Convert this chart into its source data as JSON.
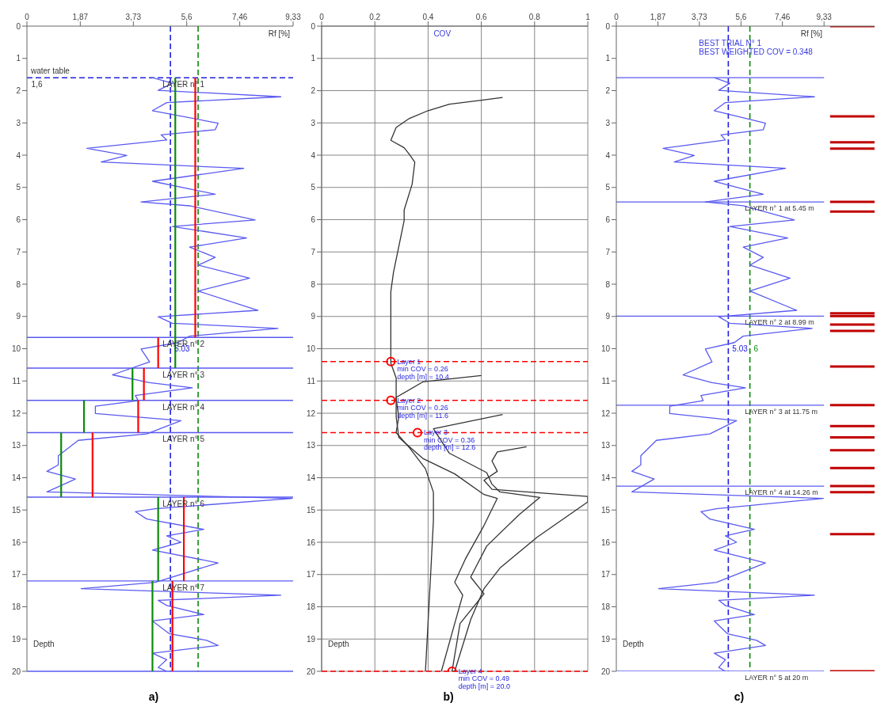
{
  "chart_data": [
    {
      "type": "line",
      "title": "a)",
      "xlabel": "Rf [%]",
      "ylabel": "Depth",
      "xlim": [
        0,
        9.33
      ],
      "xticks": [
        0,
        {
          "value": 1.87,
          "label": "1,87"
        },
        {
          "value": 3.73,
          "label": "3,73"
        },
        {
          "value": 5.6,
          "label": "5,6"
        },
        {
          "value": 7.46,
          "label": "7,46"
        },
        {
          "value": 9.33,
          "label": "9,33"
        }
      ],
      "ylim": [
        20,
        0
      ],
      "yticks": [
        0,
        1,
        2,
        3,
        4,
        5,
        6,
        7,
        8,
        9,
        10,
        11,
        12,
        13,
        14,
        15,
        16,
        17,
        18,
        19,
        20
      ],
      "grid": false,
      "series": [
        {
          "color": "#5a5af0",
          "x": [
            4.4,
            5.1,
            4.6,
            8.9,
            4.9,
            4.4,
            6.7,
            6.6,
            4.7,
            4.9,
            2.1,
            3.5,
            2.6,
            7.6,
            4.4,
            6.6,
            4.0,
            5.7,
            8.0,
            5.1,
            7.7,
            5.7,
            6.6,
            6.0,
            7.8,
            6.0,
            8.1,
            4.6,
            5.1,
            8.8,
            5.7,
            5.3,
            4.0,
            4.3,
            3.0,
            4.3,
            5.8,
            3.8,
            3.9,
            2.4,
            2.4,
            5.4,
            4.2,
            1.8,
            1.1,
            1.1,
            0.7,
            1.7,
            0.7,
            9.3,
            4.5,
            3.8,
            4.2,
            6.2,
            4.9,
            5.4,
            4.4,
            6.7,
            4.5,
            1.9,
            8.9,
            4.6,
            4.9,
            6.2,
            4.4,
            5.0,
            6.3,
            6.7,
            4.4,
            4.9,
            4.6,
            4.9
          ],
          "values": [
            1.6,
            1.77,
            1.99,
            2.19,
            2.37,
            2.62,
            3.01,
            3.21,
            3.37,
            3.53,
            3.79,
            4.01,
            4.21,
            4.41,
            4.81,
            5.21,
            5.45,
            5.57,
            6.01,
            6.21,
            6.57,
            6.85,
            7.17,
            7.41,
            7.81,
            8.21,
            8.81,
            9.01,
            9.21,
            9.37,
            9.61,
            9.81,
            10.01,
            10.41,
            10.81,
            11.05,
            11.21,
            11.45,
            11.61,
            11.78,
            12.01,
            12.23,
            12.64,
            12.84,
            13.32,
            13.6,
            13.8,
            14.04,
            14.44,
            14.64,
            14.96,
            15.05,
            15.28,
            15.6,
            15.8,
            16.0,
            16.24,
            16.64,
            17.24,
            17.44,
            17.64,
            17.8,
            17.96,
            18.24,
            18.44,
            18.84,
            19.04,
            19.2,
            19.44,
            19.64,
            19.88,
            20.0
          ]
        },
        {
          "color": "#ff0000",
          "x": [
            5.9,
            5.9
          ],
          "values": [
            1.6,
            9.65
          ]
        },
        {
          "color": "#ff0000",
          "x": [
            4.6,
            4.6
          ],
          "values": [
            9.65,
            10.6
          ]
        },
        {
          "color": "#ff0000",
          "x": [
            4.1,
            4.1
          ],
          "values": [
            10.6,
            11.6
          ]
        },
        {
          "color": "#ff0000",
          "x": [
            3.9,
            3.9
          ],
          "values": [
            11.6,
            12.6
          ]
        },
        {
          "color": "#ff0000",
          "x": [
            2.3,
            2.3
          ],
          "values": [
            12.6,
            14.6
          ]
        },
        {
          "color": "#ff0000",
          "x": [
            5.5,
            5.5
          ],
          "values": [
            14.6,
            17.2
          ]
        },
        {
          "color": "#ff0000",
          "x": [
            5.1,
            5.1
          ],
          "values": [
            17.2,
            20
          ]
        },
        {
          "color": "#0a8a0a",
          "x": [
            5.2,
            5.2
          ],
          "values": [
            1.6,
            10.6
          ]
        },
        {
          "color": "#0a8a0a",
          "x": [
            3.7,
            3.7
          ],
          "values": [
            10.6,
            11.6
          ]
        },
        {
          "color": "#0a8a0a",
          "x": [
            2.0,
            2.0
          ],
          "values": [
            11.6,
            12.6
          ]
        },
        {
          "color": "#0a8a0a",
          "x": [
            1.2,
            1.2
          ],
          "values": [
            12.6,
            14.6
          ]
        },
        {
          "color": "#0a8a0a",
          "x": [
            4.6,
            4.6
          ],
          "values": [
            14.6,
            17.2
          ]
        },
        {
          "color": "#0a8a0a",
          "x": [
            4.4,
            4.4
          ],
          "values": [
            17.2,
            20
          ]
        }
      ],
      "ref_lines": [
        {
          "axis": "x",
          "value": 5.03,
          "label": "5.03",
          "color": "#2020e0",
          "line_style": "dashed"
        },
        {
          "axis": "x",
          "value": 6,
          "color": "#0a8a0a",
          "line_style": "dashed"
        },
        {
          "axis": "y",
          "value": 1.6,
          "label": "water table",
          "color": "#2020e0",
          "line_style": "dashed"
        },
        {
          "axis": "y",
          "value": 9.65,
          "color": "#5a5af0"
        },
        {
          "axis": "y",
          "value": 10.6,
          "color": "#5a5af0"
        },
        {
          "axis": "y",
          "value": 11.6,
          "color": "#5a5af0"
        },
        {
          "axis": "y",
          "value": 12.6,
          "color": "#5a5af0"
        },
        {
          "axis": "y",
          "value": 14.6,
          "color": "#5a5af0"
        },
        {
          "axis": "y",
          "value": 17.2,
          "color": "#5a5af0"
        },
        {
          "axis": "y",
          "value": 20,
          "color": "#5a5af0"
        }
      ],
      "annotations": [
        {
          "text": "1,6",
          "x": 0.1,
          "y": 1.6
        },
        {
          "text": "LAYER n° 1",
          "x": 4.7,
          "y": 1.6
        },
        {
          "text": "LAYER n° 2",
          "x": 4.7,
          "y": 9.65
        },
        {
          "text": "LAYER n° 3",
          "x": 4.7,
          "y": 10.6
        },
        {
          "text": "LAYER n° 4",
          "x": 4.7,
          "y": 11.6
        },
        {
          "text": "LAYER n° 5",
          "x": 4.7,
          "y": 12.6
        },
        {
          "text": "LAYER n° 6",
          "x": 4.7,
          "y": 14.6
        },
        {
          "text": "LAYER n° 7",
          "x": 4.7,
          "y": 17.2
        }
      ]
    },
    {
      "type": "line",
      "title": "b)",
      "xlabel": "COV",
      "ylabel": "Depth",
      "xlim": [
        0,
        1
      ],
      "xticks": [
        0,
        0.2,
        0.4,
        0.6,
        0.8,
        1
      ],
      "ylim": [
        20,
        0
      ],
      "yticks": [
        0,
        1,
        2,
        3,
        4,
        5,
        6,
        7,
        8,
        9,
        10,
        11,
        12,
        13,
        14,
        15,
        16,
        17,
        18,
        19,
        20
      ],
      "grid": true,
      "series": [
        {
          "color": "#333333",
          "x": [
            0.68,
            0.6,
            0.48,
            0.4,
            0.33,
            0.28,
            0.26,
            0.31,
            0.33,
            0.35,
            0.34,
            0.31,
            0.31,
            0.29,
            0.27,
            0.26,
            0.26,
            0.28,
            0.28,
            0.29,
            0.28,
            0.33,
            0.39,
            0.42,
            0.42,
            0.41,
            0.39
          ],
          "values": [
            2.21,
            2.3,
            2.42,
            2.62,
            2.86,
            3.14,
            3.54,
            3.77,
            3.98,
            4.22,
            4.9,
            5.7,
            6.03,
            6.83,
            7.63,
            8.23,
            10.45,
            10.91,
            11.55,
            12.11,
            12.6,
            13.07,
            13.72,
            14.45,
            15.32,
            16.93,
            20.0
          ]
        },
        {
          "color": "#333333",
          "x": [
            0.6,
            0.38,
            0.28,
            0.28,
            0.29,
            0.38,
            0.5,
            0.61,
            0.66,
            0.61,
            0.54,
            0.5,
            0.53,
            0.5,
            0.45
          ],
          "values": [
            10.83,
            11.03,
            11.51,
            12.11,
            12.75,
            13.4,
            13.88,
            14.52,
            14.64,
            15.48,
            16.52,
            17.24,
            17.64,
            18.52,
            20.0
          ]
        },
        {
          "color": "#333333",
          "x": [
            0.68,
            0.42,
            0.48,
            0.62,
            0.64,
            0.67,
            0.82,
            0.74,
            0.62,
            0.56,
            0.61,
            0.52,
            0.49
          ],
          "values": [
            12.04,
            12.48,
            13.24,
            13.84,
            14.2,
            14.44,
            14.61,
            15.16,
            16.12,
            17.08,
            17.6,
            18.52,
            20.0
          ]
        },
        {
          "color": "#333333",
          "x": [
            0.77,
            0.66,
            0.64,
            0.66,
            0.61,
            0.64,
            1.0,
            1.0,
            0.81,
            0.67,
            0.61,
            0.56,
            0.5
          ],
          "values": [
            13.04,
            13.2,
            13.48,
            13.8,
            14.08,
            14.36,
            14.58,
            14.75,
            15.84,
            16.8,
            17.44,
            18.4,
            20.0
          ]
        },
        {
          "type": "scatter",
          "marker": "circle",
          "color": "#ff0000",
          "x": [
            0.26,
            0.26,
            0.36,
            0.49
          ],
          "values": [
            10.4,
            11.6,
            12.6,
            20.0
          ]
        }
      ],
      "ref_lines": [
        {
          "axis": "y",
          "value": 10.4,
          "color": "#ff0000",
          "line_style": "dashed"
        },
        {
          "axis": "y",
          "value": 11.6,
          "color": "#ff0000",
          "line_style": "dashed"
        },
        {
          "axis": "y",
          "value": 12.6,
          "color": "#ff0000",
          "line_style": "dashed"
        },
        {
          "axis": "y",
          "value": 20,
          "color": "#ff0000",
          "line_style": "dashed"
        }
      ],
      "annotations": [
        {
          "text": "Layer 1\nmin COV = 0.26\ndepth [m] = 10.4",
          "x": 0.26,
          "y": 10.4
        },
        {
          "text": "Layer 2\nmin COV = 0.26\ndepth [m] = 11.6",
          "x": 0.26,
          "y": 11.6
        },
        {
          "text": "Layer 3\nmin COV = 0.36\ndepth [m] = 12.6",
          "x": 0.36,
          "y": 12.6
        },
        {
          "text": "Layer 4\nmin COV = 0.49\ndepth [m] = 20.0",
          "x": 0.49,
          "y": 20.0
        }
      ]
    },
    {
      "type": "line",
      "title": "c)",
      "xlabel": "Rf [%]",
      "ylabel": "Depth",
      "xlim": [
        0,
        11.6
      ],
      "xticks": [
        0,
        {
          "value": 1.87,
          "label": "1,87"
        },
        {
          "value": 3.73,
          "label": "3,73"
        },
        {
          "value": 5.6,
          "label": "5,6"
        },
        {
          "value": 7.46,
          "label": "7,46"
        },
        {
          "value": 9.33,
          "label": "9,33"
        }
      ],
      "ylim": [
        20,
        0
      ],
      "yticks": [
        0,
        1,
        2,
        3,
        4,
        5,
        6,
        7,
        8,
        9,
        10,
        11,
        12,
        13,
        14,
        15,
        16,
        17,
        18,
        19,
        20
      ],
      "grid": false,
      "series": [
        {
          "color": "#5a5af0",
          "x": [
            4.4,
            5.1,
            4.6,
            8.9,
            4.9,
            4.4,
            6.7,
            6.6,
            4.7,
            4.9,
            2.1,
            3.5,
            2.6,
            7.6,
            4.4,
            6.6,
            4.0,
            5.7,
            8.0,
            5.1,
            7.7,
            5.7,
            6.6,
            6.0,
            7.8,
            6.0,
            8.1,
            4.6,
            5.1,
            8.8,
            5.7,
            5.3,
            4.0,
            4.3,
            3.0,
            4.3,
            5.8,
            3.8,
            3.9,
            2.4,
            2.4,
            5.4,
            4.2,
            1.8,
            1.1,
            1.1,
            0.7,
            1.7,
            0.7,
            9.3,
            4.5,
            3.8,
            4.2,
            6.2,
            4.9,
            5.4,
            4.4,
            6.7,
            4.5,
            1.9,
            8.9,
            4.6,
            4.9,
            6.2,
            4.4,
            5.0,
            6.3,
            6.7,
            4.4,
            4.9,
            4.6,
            4.9
          ],
          "values": [
            1.6,
            1.77,
            1.99,
            2.19,
            2.37,
            2.62,
            3.01,
            3.21,
            3.37,
            3.53,
            3.79,
            4.01,
            4.21,
            4.41,
            4.81,
            5.21,
            5.45,
            5.57,
            6.01,
            6.21,
            6.57,
            6.85,
            7.17,
            7.41,
            7.81,
            8.21,
            8.81,
            9.01,
            9.21,
            9.37,
            9.61,
            9.81,
            10.01,
            10.41,
            10.81,
            11.05,
            11.21,
            11.45,
            11.61,
            11.78,
            12.01,
            12.23,
            12.64,
            12.84,
            13.32,
            13.6,
            13.8,
            14.04,
            14.44,
            14.64,
            14.96,
            15.05,
            15.28,
            15.6,
            15.8,
            16.0,
            16.24,
            16.64,
            17.24,
            17.44,
            17.64,
            17.8,
            17.96,
            18.24,
            18.44,
            18.84,
            19.04,
            19.2,
            19.44,
            19.64,
            19.88,
            20.0
          ]
        },
        {
          "color": "#5a5af0",
          "x": [
            0,
            9.33
          ],
          "values": [
            1.6,
            1.6
          ]
        },
        {
          "color": "#5a5af0",
          "x": [
            0,
            9.33
          ],
          "values": [
            5.45,
            5.45
          ]
        },
        {
          "color": "#5a5af0",
          "x": [
            0,
            9.33
          ],
          "values": [
            8.99,
            8.99
          ]
        },
        {
          "color": "#5a5af0",
          "x": [
            0,
            9.33
          ],
          "values": [
            11.75,
            11.75
          ]
        },
        {
          "color": "#5a5af0",
          "x": [
            0,
            9.33
          ],
          "values": [
            14.26,
            14.26
          ]
        },
        {
          "color": "#5a5af0",
          "x": [
            0,
            9.33
          ],
          "values": [
            20,
            20
          ]
        },
        {
          "color": "#c00000",
          "x": [
            9.6,
            11.6
          ],
          "values": [
            0,
            0
          ]
        },
        {
          "color": "#c00000",
          "x": [
            9.6,
            11.6
          ],
          "values": [
            2.8,
            2.8
          ]
        },
        {
          "color": "#c00000",
          "x": [
            9.6,
            11.6
          ],
          "values": [
            3.6,
            3.6
          ]
        },
        {
          "color": "#c00000",
          "x": [
            9.6,
            11.6
          ],
          "values": [
            3.8,
            3.8
          ]
        },
        {
          "color": "#c00000",
          "x": [
            9.6,
            11.6
          ],
          "values": [
            5.45,
            5.45
          ]
        },
        {
          "color": "#c00000",
          "x": [
            9.6,
            11.6
          ],
          "values": [
            5.75,
            5.75
          ]
        },
        {
          "color": "#c00000",
          "x": [
            9.6,
            11.6
          ],
          "values": [
            8.9,
            8.9
          ]
        },
        {
          "color": "#c00000",
          "x": [
            9.6,
            11.6
          ],
          "values": [
            8.99,
            8.99
          ]
        },
        {
          "color": "#c00000",
          "x": [
            9.6,
            11.6
          ],
          "values": [
            9.25,
            9.25
          ]
        },
        {
          "color": "#c00000",
          "x": [
            9.6,
            11.6
          ],
          "values": [
            9.45,
            9.45
          ]
        },
        {
          "color": "#c00000",
          "x": [
            9.6,
            11.6
          ],
          "values": [
            10.55,
            10.55
          ]
        },
        {
          "color": "#c00000",
          "x": [
            9.6,
            11.6
          ],
          "values": [
            11.75,
            11.75
          ]
        },
        {
          "color": "#c00000",
          "x": [
            9.6,
            11.6
          ],
          "values": [
            12.4,
            12.4
          ]
        },
        {
          "color": "#c00000",
          "x": [
            9.6,
            11.6
          ],
          "values": [
            12.75,
            12.75
          ]
        },
        {
          "color": "#c00000",
          "x": [
            9.6,
            11.6
          ],
          "values": [
            13.15,
            13.15
          ]
        },
        {
          "color": "#c00000",
          "x": [
            9.6,
            11.6
          ],
          "values": [
            13.7,
            13.7
          ]
        },
        {
          "color": "#c00000",
          "x": [
            9.6,
            11.6
          ],
          "values": [
            14.26,
            14.26
          ]
        },
        {
          "color": "#c00000",
          "x": [
            9.6,
            11.6
          ],
          "values": [
            14.45,
            14.45
          ]
        },
        {
          "color": "#c00000",
          "x": [
            9.6,
            11.6
          ],
          "values": [
            15.75,
            15.75
          ]
        },
        {
          "color": "#c00000",
          "x": [
            9.6,
            11.6
          ],
          "values": [
            20,
            20
          ]
        }
      ],
      "ref_lines": [
        {
          "axis": "x",
          "value": 5.03,
          "label": "5.03",
          "color": "#2020e0",
          "line_style": "dashed"
        },
        {
          "axis": "x",
          "value": 6,
          "label": "6",
          "color": "#0a8a0a",
          "line_style": "dashed"
        }
      ],
      "annotations": [
        "BEST TRIAL N° 1\nBEST WEIGHTED COV = 0.348",
        {
          "text": "LAYER n° 1 at 5.45 m",
          "x": 5.7,
          "y": 5.45
        },
        {
          "text": "LAYER n° 2 at 8.99 m",
          "x": 5.7,
          "y": 8.99
        },
        {
          "text": "LAYER n° 3 at 11.75 m",
          "x": 5.7,
          "y": 11.75
        },
        {
          "text": "LAYER n° 4 at 14.26 m",
          "x": 5.7,
          "y": 14.26
        },
        {
          "text": "LAYER n° 5 at 20 m",
          "x": 5.7,
          "y": 20
        }
      ]
    }
  ]
}
